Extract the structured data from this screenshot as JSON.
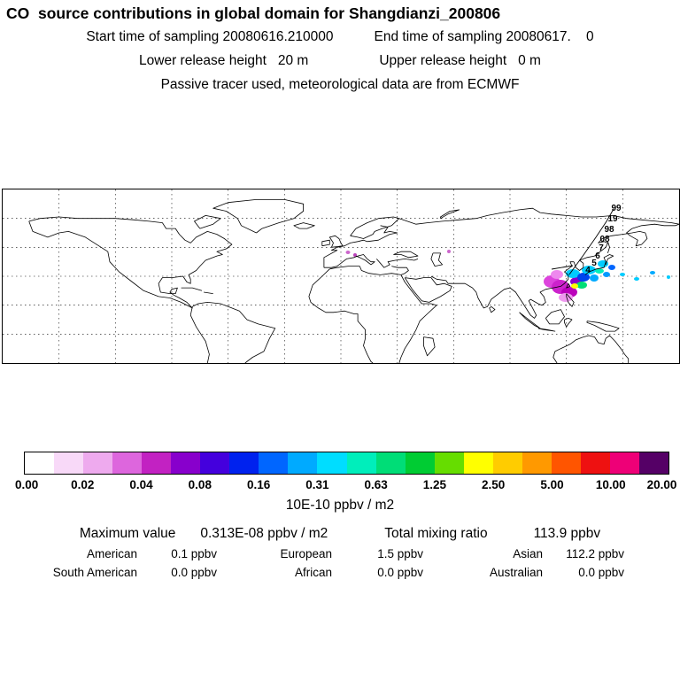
{
  "header": {
    "title": "CO  source contributions in global domain for Shangdianzi_200806",
    "start_time": "Start time of sampling 20080616.210000",
    "end_time": "End time of sampling 20080617.    0",
    "lower_height": "Lower release height   20 m",
    "upper_height": "Upper release height   0 m",
    "tracer_note": "Passive tracer used, meteorological data are from ECMWF"
  },
  "map": {
    "trajectory_labels": [
      "99",
      "19",
      "98",
      "08",
      "7",
      "6",
      "5",
      "4"
    ]
  },
  "colorbar": {
    "tick_labels": [
      "0.00",
      "0.02",
      "0.04",
      "0.08",
      "0.16",
      "0.31",
      "0.63",
      "1.25",
      "2.50",
      "5.00",
      "10.00",
      "20.00"
    ],
    "unit_label": "10E-10 ppbv / m2",
    "colors": [
      "#ffffff",
      "#f8d9f8",
      "#eeaaee",
      "#dd66dd",
      "#c222c2",
      "#8800cc",
      "#4400dd",
      "#0022ee",
      "#0066ff",
      "#00aaff",
      "#00ddff",
      "#00eebb",
      "#00dd77",
      "#00cc33",
      "#66dd00",
      "#ffff00",
      "#ffcc00",
      "#ff9900",
      "#ff5500",
      "#ee1111",
      "#ee0077",
      "#550066"
    ]
  },
  "stats": {
    "max_label": "Maximum value",
    "max_value": "0.313E-08 ppbv / m2",
    "total_label": "Total mixing ratio",
    "total_value": "113.9 ppbv",
    "regions": [
      {
        "name": "American",
        "value": "0.1 ppbv"
      },
      {
        "name": "European",
        "value": "1.5 ppbv"
      },
      {
        "name": "Asian",
        "value": "112.2 ppbv"
      },
      {
        "name": "South American",
        "value": "0.0 ppbv"
      },
      {
        "name": "African",
        "value": "0.0 ppbv"
      },
      {
        "name": "Australian",
        "value": "0.0 ppbv"
      }
    ]
  },
  "chart_data": {
    "type": "heatmap",
    "title": "CO source contributions in global domain for Shangdianzi_200806",
    "subtitle": [
      "Start time of sampling 20080616.210000",
      "End time of sampling 20080617. 0",
      "Lower release height 20 m",
      "Upper release height 0 m",
      "Passive tracer used, meteorological data are from ECMWF"
    ],
    "basemap": "world map, equirectangular, lon -180..180, lat -30..90, dashed graticule 30 deg lon x 20 deg lat",
    "colorbar_levels": [
      0.0,
      0.02,
      0.04,
      0.08,
      0.16,
      0.31,
      0.63,
      1.25,
      2.5,
      5.0,
      10.0,
      20.0
    ],
    "colorbar_unit": "10E-10 ppbv / m2",
    "maximum_value": "0.313E-08 ppbv / m2",
    "total_mixing_ratio_ppbv": 113.9,
    "regional_contributions_ppbv": {
      "American": 0.1,
      "European": 1.5,
      "Asian": 112.2,
      "South American": 0.0,
      "African": 0.0,
      "Australian": 0.0
    },
    "hotspot_region": "Eastern China / Korea / Japan around Shangdianzi station; minor spots over central Europe",
    "legend_position": "bottom horizontal colorbar"
  }
}
